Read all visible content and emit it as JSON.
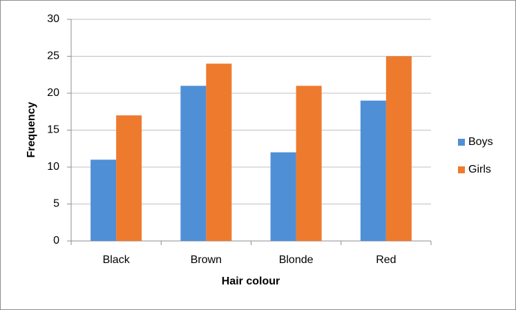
{
  "chart_data": {
    "type": "bar",
    "x_label": "Hair colour",
    "y_label": "Frequency",
    "categories": [
      "Black",
      "Brown",
      "Blonde",
      "Red"
    ],
    "series": [
      {
        "name": "Boys",
        "color": "#4f8fd6",
        "values": [
          11,
          21,
          12,
          19
        ]
      },
      {
        "name": "Girls",
        "color": "#ee7a2e",
        "values": [
          17,
          24,
          21,
          25
        ]
      }
    ],
    "ylim": [
      0,
      30
    ],
    "yticks": [
      0,
      5,
      10,
      15,
      20,
      25,
      30
    ],
    "grid": true,
    "legend": "right"
  }
}
